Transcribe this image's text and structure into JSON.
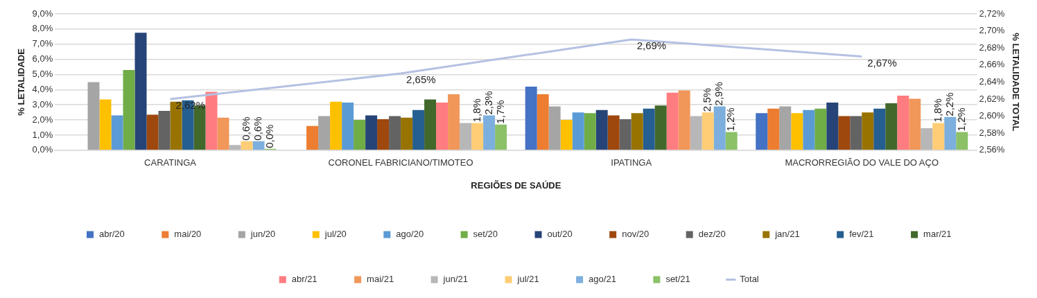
{
  "chart_data": {
    "type": "bar",
    "categories": [
      "CARATINGA",
      "CORONEL FABRICIANO/TIMOTEO",
      "IPATINGA",
      "MACRORREGIÃO DO VALE DO AÇO"
    ],
    "xlabel": "REGIÕES DE SAÚDE",
    "ylabel": "% LETALIDADE",
    "y2label": "% LETALIDADE TOTAL",
    "ylim": [
      0,
      9
    ],
    "yticks": [
      {
        "value": 0,
        "label": "0,0%"
      },
      {
        "value": 1,
        "label": "1,0%"
      },
      {
        "value": 2,
        "label": "2,0%"
      },
      {
        "value": 3,
        "label": "3,0%"
      },
      {
        "value": 4,
        "label": "4,0%"
      },
      {
        "value": 5,
        "label": "5,0%"
      },
      {
        "value": 6,
        "label": "6,0%"
      },
      {
        "value": 7,
        "label": "7,0%"
      },
      {
        "value": 8,
        "label": "8,0%"
      },
      {
        "value": 9,
        "label": "9,0%"
      }
    ],
    "y2lim": [
      2.56,
      2.72
    ],
    "y2ticks": [
      {
        "value": 2.56,
        "label": "2,56%"
      },
      {
        "value": 2.58,
        "label": "2,58%"
      },
      {
        "value": 2.6,
        "label": "2,60%"
      },
      {
        "value": 2.62,
        "label": "2,62%"
      },
      {
        "value": 2.64,
        "label": "2,64%"
      },
      {
        "value": 2.66,
        "label": "2,66%"
      },
      {
        "value": 2.68,
        "label": "2,68%"
      },
      {
        "value": 2.7,
        "label": "2,70%"
      },
      {
        "value": 2.72,
        "label": "2,72%"
      }
    ],
    "grid": "y",
    "legend": "bottom",
    "series": [
      {
        "name": "abr/20",
        "color": "#4472c4",
        "values": [
          null,
          null,
          4.2,
          2.45
        ]
      },
      {
        "name": "mai/20",
        "color": "#ed7d31",
        "values": [
          null,
          1.6,
          3.7,
          2.75
        ]
      },
      {
        "name": "jun/20",
        "color": "#a5a5a5",
        "values": [
          4.5,
          2.25,
          2.9,
          2.9
        ]
      },
      {
        "name": "jul/20",
        "color": "#ffc000",
        "values": [
          3.35,
          3.2,
          2.0,
          2.45
        ]
      },
      {
        "name": "ago/20",
        "color": "#5b9bd5",
        "values": [
          2.3,
          3.15,
          2.5,
          2.65
        ]
      },
      {
        "name": "set/20",
        "color": "#70ad47",
        "values": [
          5.3,
          2.0,
          2.45,
          2.75
        ]
      },
      {
        "name": "out/20",
        "color": "#264478",
        "values": [
          7.75,
          2.3,
          2.65,
          3.15
        ]
      },
      {
        "name": "nov/20",
        "color": "#9e480e",
        "values": [
          2.35,
          2.05,
          2.3,
          2.25
        ]
      },
      {
        "name": "dez/20",
        "color": "#636363",
        "values": [
          2.6,
          2.25,
          2.05,
          2.25
        ]
      },
      {
        "name": "jan/21",
        "color": "#997300",
        "values": [
          3.2,
          2.15,
          2.45,
          2.5
        ]
      },
      {
        "name": "fev/21",
        "color": "#255e91",
        "values": [
          3.3,
          2.65,
          2.75,
          2.75
        ]
      },
      {
        "name": "mar/21",
        "color": "#43682b",
        "values": [
          2.95,
          3.35,
          2.95,
          3.1
        ]
      },
      {
        "name": "abr/21",
        "color": "#ff7c80",
        "values": [
          3.85,
          3.15,
          3.8,
          3.6
        ]
      },
      {
        "name": "mai/21",
        "color": "#f1975a",
        "values": [
          2.15,
          3.7,
          3.95,
          3.4
        ]
      },
      {
        "name": "jun/21",
        "color": "#b7b7b7",
        "values": [
          0.35,
          1.8,
          2.25,
          1.45
        ]
      },
      {
        "name": "jul/21",
        "color": "#ffcd75",
        "values": [
          0.6,
          1.8,
          2.5,
          1.8
        ],
        "value_labels": [
          "0,6%",
          "1,8%",
          "2,5%",
          "1,8%"
        ]
      },
      {
        "name": "ago/21",
        "color": "#7cafdd",
        "values": [
          0.6,
          2.3,
          2.9,
          2.2
        ],
        "value_labels": [
          "0,6%",
          "2,3%",
          "2,9%",
          "2,2%"
        ]
      },
      {
        "name": "set/21",
        "color": "#8cc168",
        "values": [
          0.0,
          1.7,
          1.2,
          1.2
        ],
        "value_labels": [
          "0,0%",
          "1,7%",
          "1,2%",
          "1,2%"
        ]
      },
      {
        "name": "Total",
        "type": "line",
        "axis": "y2",
        "color": "#b4c1e2",
        "values": [
          2.62,
          2.65,
          2.69,
          2.67
        ],
        "value_labels": [
          "2,62%",
          "2,65%",
          "2,69%",
          "2,67%"
        ]
      }
    ]
  }
}
